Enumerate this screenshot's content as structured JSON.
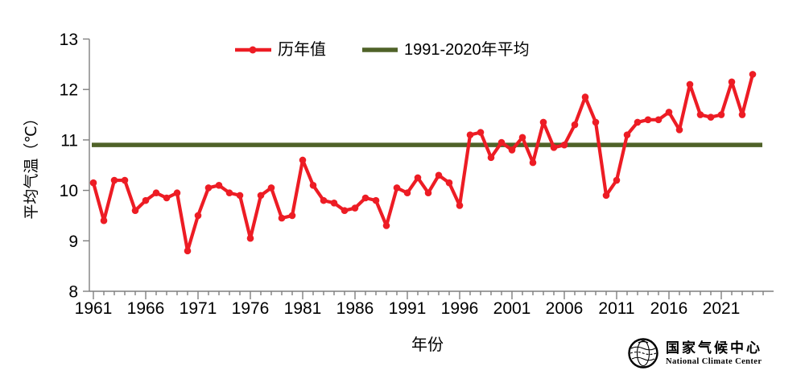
{
  "chart_data": {
    "type": "line",
    "title": "",
    "xlabel": "年份",
    "ylabel": "平均气温（℃）",
    "x_start": 1961,
    "x_end": 2024,
    "ylim": [
      8,
      13
    ],
    "ytick_step": 1,
    "xticks_labeled": [
      1961,
      1966,
      1971,
      1976,
      1981,
      1986,
      1991,
      1996,
      2001,
      2006,
      2011,
      2016,
      2021
    ],
    "x_minor_tick_range": [
      1961,
      2025
    ],
    "grid": false,
    "legend_position": "top-center",
    "series": [
      {
        "name": "历年值",
        "type": "line+marker",
        "color": "#ED1C24",
        "years": [
          1961,
          1962,
          1963,
          1964,
          1965,
          1966,
          1967,
          1968,
          1969,
          1970,
          1971,
          1972,
          1973,
          1974,
          1975,
          1976,
          1977,
          1978,
          1979,
          1980,
          1981,
          1982,
          1983,
          1984,
          1985,
          1986,
          1987,
          1988,
          1989,
          1990,
          1991,
          1992,
          1993,
          1994,
          1995,
          1996,
          1997,
          1998,
          1999,
          2000,
          2001,
          2002,
          2003,
          2004,
          2005,
          2006,
          2007,
          2008,
          2009,
          2010,
          2011,
          2012,
          2013,
          2014,
          2015,
          2016,
          2017,
          2018,
          2019,
          2020,
          2021,
          2022,
          2023,
          2024
        ],
        "values": [
          10.15,
          9.4,
          10.2,
          10.2,
          9.6,
          9.8,
          9.95,
          9.85,
          9.95,
          8.8,
          9.5,
          10.05,
          10.1,
          9.95,
          9.9,
          9.05,
          9.9,
          10.05,
          9.45,
          9.5,
          10.6,
          10.1,
          9.8,
          9.75,
          9.6,
          9.65,
          9.85,
          9.8,
          9.3,
          10.05,
          9.95,
          10.25,
          9.95,
          10.3,
          10.15,
          9.7,
          11.1,
          11.15,
          10.65,
          10.95,
          10.8,
          11.05,
          10.55,
          11.35,
          10.85,
          10.9,
          11.3,
          11.85,
          11.35,
          9.9,
          10.2,
          11.1,
          11.35,
          11.4,
          11.4,
          11.55,
          11.2,
          12.1,
          11.5,
          11.45,
          11.5,
          12.15,
          11.5,
          12.3
        ]
      },
      {
        "name": "1991-2020年平均",
        "type": "horizontal-reference",
        "color": "#4F6228",
        "value": 10.9
      }
    ]
  },
  "legend": {
    "annual_label": "历年值",
    "mean_label": "1991-2020年平均"
  },
  "axes": {
    "x_title": "年份",
    "y_title": "平均气温（℃）"
  },
  "footer": {
    "org_cn": "国家气候中心",
    "org_en": "National Climate Center"
  },
  "colors": {
    "annual_series": "#ED1C24",
    "mean_line": "#4F6228",
    "axis": "#7F7F7F",
    "text": "#000000"
  }
}
